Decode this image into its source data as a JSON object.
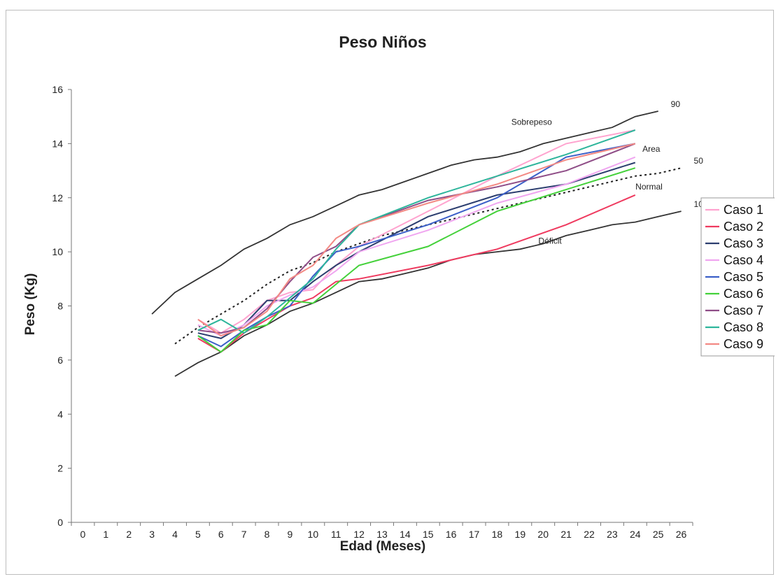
{
  "chart_data": {
    "type": "line",
    "title": "Peso Niños",
    "xlabel": "Edad (Meses)",
    "ylabel": "Peso (Kg)",
    "xlim": [
      0,
      26
    ],
    "ylim": [
      0,
      16
    ],
    "x_ticks": [
      "0",
      "1",
      "2",
      "3",
      "4",
      "5",
      "6",
      "7",
      "8",
      "9",
      "10",
      "11",
      "12",
      "13",
      "14",
      "15",
      "16",
      "17",
      "18",
      "19",
      "20",
      "21",
      "22",
      "23",
      "24",
      "25",
      "26"
    ],
    "y_ticks": [
      "0",
      "2",
      "4",
      "6",
      "8",
      "10",
      "12",
      "14",
      "16"
    ],
    "grid": false,
    "legend_position": "right",
    "percentile_curves": [
      {
        "label": "90",
        "style": "solid",
        "color": "#333333",
        "x": [
          3,
          4,
          5,
          6,
          7,
          8,
          9,
          10,
          11,
          12,
          13,
          14,
          15,
          16,
          17,
          18,
          19,
          20,
          21,
          22,
          23,
          24,
          25
        ],
        "y": [
          7.7,
          8.5,
          9.0,
          9.5,
          10.1,
          10.5,
          11.0,
          11.3,
          11.7,
          12.1,
          12.3,
          12.6,
          12.9,
          13.2,
          13.4,
          13.5,
          13.7,
          14.0,
          14.2,
          14.4,
          14.6,
          15.0,
          15.2
        ]
      },
      {
        "label": "50",
        "style": "dotted",
        "color": "#222222",
        "x": [
          4,
          5,
          6,
          7,
          8,
          9,
          10,
          11,
          12,
          13,
          14,
          15,
          16,
          17,
          18,
          19,
          20,
          21,
          22,
          23,
          24,
          25,
          26
        ],
        "y": [
          6.6,
          7.2,
          7.7,
          8.2,
          8.8,
          9.3,
          9.6,
          10.0,
          10.3,
          10.6,
          10.8,
          11.0,
          11.2,
          11.4,
          11.6,
          11.8,
          12.0,
          12.2,
          12.4,
          12.6,
          12.8,
          12.9,
          13.1
        ]
      },
      {
        "label": "10",
        "style": "solid",
        "color": "#333333",
        "x": [
          4,
          5,
          6,
          7,
          8,
          9,
          10,
          11,
          12,
          13,
          14,
          15,
          16,
          17,
          18,
          19,
          20,
          21,
          22,
          23,
          24,
          25,
          26
        ],
        "y": [
          5.4,
          5.9,
          6.3,
          6.9,
          7.3,
          7.8,
          8.1,
          8.5,
          8.9,
          9.0,
          9.2,
          9.4,
          9.7,
          9.9,
          10.0,
          10.1,
          10.3,
          10.6,
          10.8,
          11.0,
          11.1,
          11.3,
          11.5
        ]
      }
    ],
    "series": [
      {
        "name": "Caso 1",
        "color": "#ffa3cf",
        "x": [
          5,
          6,
          7,
          8,
          9,
          10,
          11,
          12,
          15,
          18,
          21,
          24
        ],
        "y": [
          7.5,
          7.0,
          7.5,
          8.2,
          8.5,
          8.6,
          9.5,
          10.2,
          11.5,
          12.8,
          14.0,
          14.5
        ]
      },
      {
        "name": "Caso 2",
        "color": "#ef3a5f",
        "x": [
          5,
          6,
          7,
          8,
          9,
          10,
          11,
          12,
          15,
          18,
          21,
          24
        ],
        "y": [
          6.8,
          6.3,
          7.0,
          7.5,
          8.0,
          8.3,
          8.9,
          9.0,
          9.5,
          10.1,
          11.0,
          12.1
        ]
      },
      {
        "name": "Caso 3",
        "color": "#2c3e6f",
        "x": [
          5,
          6,
          7,
          8,
          9,
          10,
          11,
          12,
          15,
          18,
          21,
          24
        ],
        "y": [
          7.0,
          6.8,
          7.3,
          8.2,
          8.2,
          8.9,
          9.5,
          10.0,
          11.3,
          12.1,
          12.5,
          13.3
        ]
      },
      {
        "name": "Caso 4",
        "color": "#f0a6f0",
        "x": [
          5,
          6,
          7,
          8,
          9,
          10,
          11,
          12,
          15,
          18,
          21,
          24
        ],
        "y": [
          7.3,
          6.9,
          7.3,
          8.0,
          8.4,
          8.7,
          9.3,
          10.0,
          10.8,
          11.8,
          12.5,
          13.5
        ]
      },
      {
        "name": "Caso 5",
        "color": "#3b5fc8",
        "x": [
          5,
          6,
          7,
          8,
          9,
          10,
          11,
          12,
          15,
          18,
          21,
          24
        ],
        "y": [
          6.9,
          6.5,
          7.1,
          7.6,
          8.0,
          9.1,
          10.0,
          10.2,
          11.0,
          12.0,
          13.5,
          14.0
        ]
      },
      {
        "name": "Caso 6",
        "color": "#44d13a",
        "x": [
          5,
          6,
          7,
          8,
          9,
          10,
          11,
          12,
          15,
          18,
          21,
          24
        ],
        "y": [
          6.9,
          6.3,
          7.1,
          7.3,
          8.2,
          8.1,
          8.8,
          9.5,
          10.2,
          11.5,
          12.3,
          13.1
        ]
      },
      {
        "name": "Caso 7",
        "color": "#8f4d87",
        "x": [
          5,
          6,
          7,
          8,
          9,
          10,
          11,
          12,
          15,
          18,
          21,
          24
        ],
        "y": [
          7.1,
          7.0,
          7.2,
          7.9,
          8.9,
          9.8,
          10.2,
          11.0,
          11.9,
          12.4,
          13.0,
          14.0
        ]
      },
      {
        "name": "Caso 8",
        "color": "#2db59b",
        "x": [
          5,
          6,
          7,
          8,
          9,
          10,
          11,
          12,
          15,
          18,
          21,
          24
        ],
        "y": [
          7.1,
          7.5,
          7.0,
          7.6,
          8.3,
          9.0,
          10.1,
          11.0,
          12.0,
          12.8,
          13.6,
          14.5
        ]
      },
      {
        "name": "Caso 9",
        "color": "#f38a84",
        "x": [
          5,
          6,
          7,
          8,
          9,
          10,
          11,
          12,
          15,
          18,
          21,
          24
        ],
        "y": [
          7.5,
          6.9,
          7.2,
          7.8,
          9.0,
          9.5,
          10.5,
          11.0,
          11.8,
          12.5,
          13.4,
          14.0
        ]
      }
    ],
    "annotations": [
      {
        "text": "Sobrepeso",
        "x": 19.5,
        "y": 14.7
      },
      {
        "text": "Area",
        "x": 24.7,
        "y": 13.7
      },
      {
        "text": "Normal",
        "x": 24.6,
        "y": 12.3
      },
      {
        "text": "Déficit",
        "x": 20.3,
        "y": 10.3
      }
    ]
  }
}
